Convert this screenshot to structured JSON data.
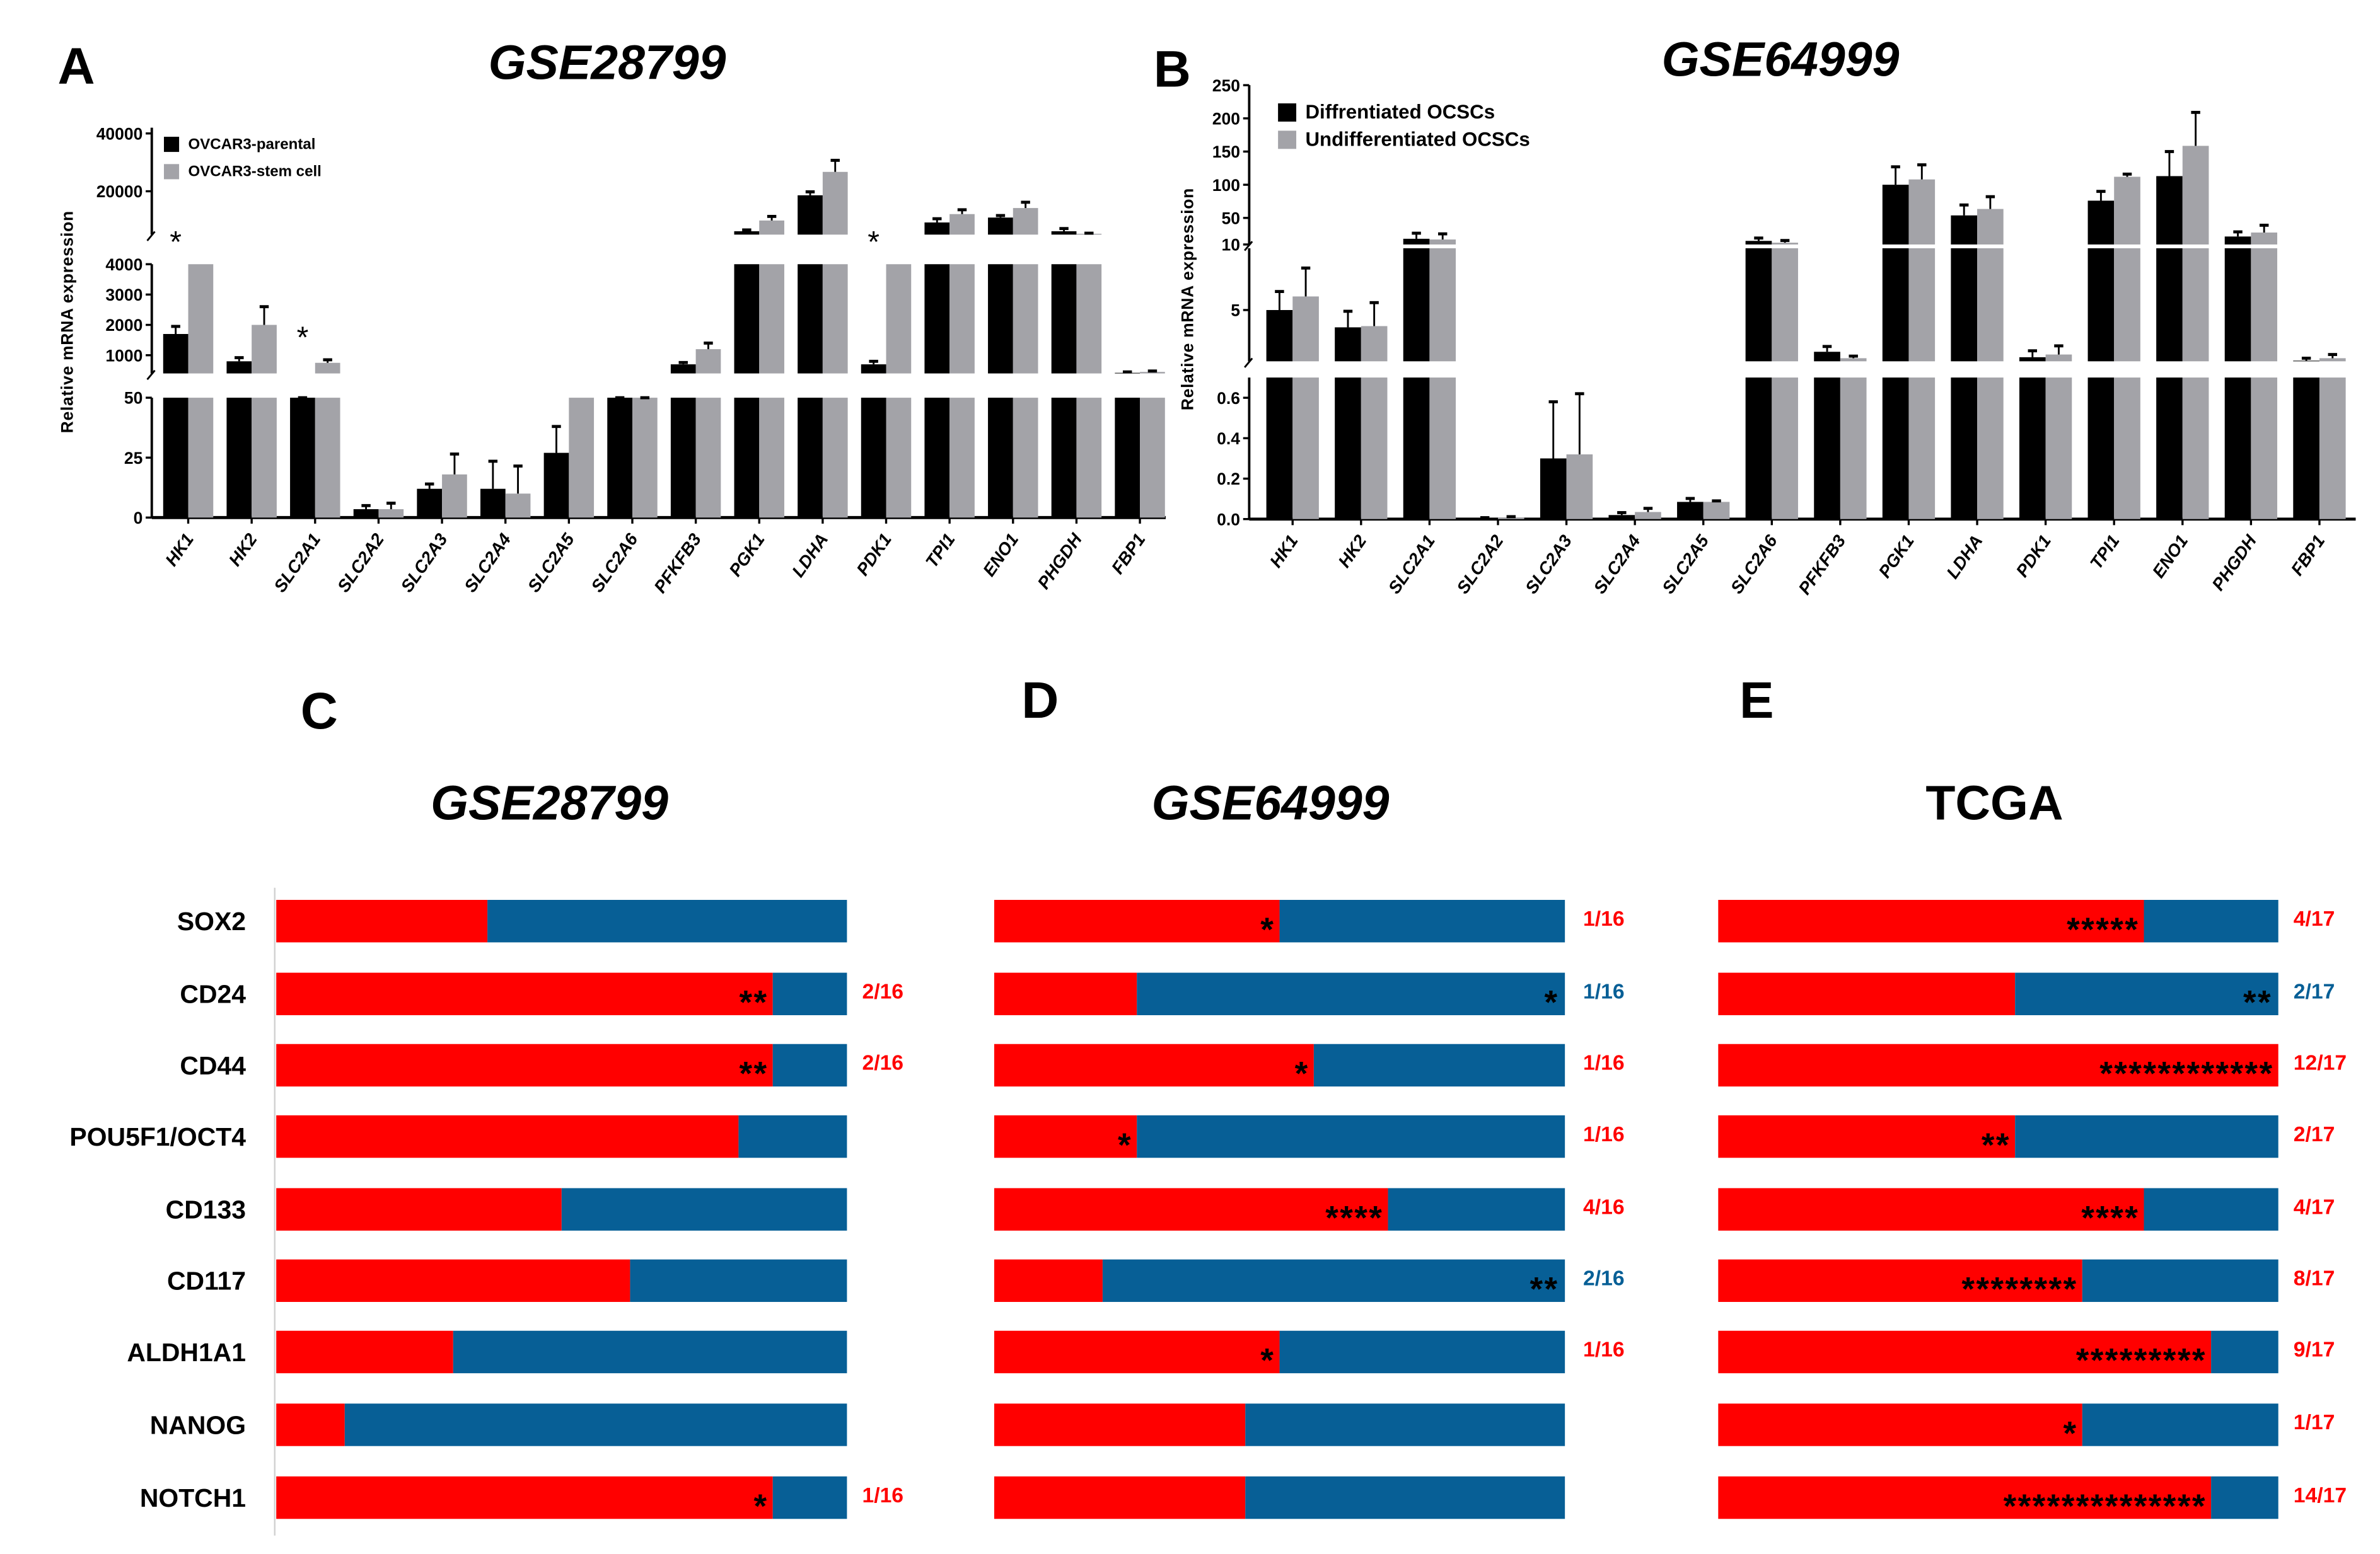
{
  "colors": {
    "parental": "#000000",
    "stem": "#A3A3A8",
    "red": "#FF0000",
    "blue": "#075F96",
    "axis": "#000000"
  },
  "panel_letters": {
    "A": "A",
    "B": "B",
    "C": "C",
    "D": "D",
    "E": "E"
  },
  "chart_data": [
    {
      "panel": "A",
      "type": "bar",
      "title": "GSE28799",
      "ylabel": "Relative mRNA expression",
      "xlabel": "",
      "y_segments": [
        [
          0,
          50
        ],
        [
          400,
          4000
        ],
        [
          5000,
          42000
        ]
      ],
      "yticks": [
        0,
        25,
        50,
        1000,
        2000,
        3000,
        4000,
        20000,
        40000
      ],
      "ytick_labels": [
        "0",
        "25",
        "50",
        "1000",
        "2000",
        "3000",
        "4000",
        "20000",
        "40000"
      ],
      "legend_position": "top-left",
      "categories": [
        "HK1",
        "HK2",
        "SLC2A1",
        "SLC2A2",
        "SLC2A3",
        "SLC2A4",
        "SLC2A5",
        "SLC2A6",
        "PFKFB3",
        "PGK1",
        "LDHA",
        "PDK1",
        "TPI1",
        "ENO1",
        "PHGDH",
        "FBP1"
      ],
      "series": [
        {
          "name": "OVCAR3-parental",
          "values": [
            1700,
            800,
            350,
            3.5,
            12,
            12,
            27,
            250,
            700,
            6160,
            18600,
            700,
            9200,
            10900,
            6160,
            420
          ],
          "errors": [
            250,
            120,
            50,
            1.5,
            2,
            11.5,
            11,
            100,
            60,
            460,
            1200,
            100,
            1300,
            700,
            940,
            30
          ]
        },
        {
          "name": "OVCAR3-stem cell",
          "values": [
            4000,
            2000,
            750,
            3.5,
            18,
            10,
            50,
            200,
            1200,
            9880,
            26700,
            4000,
            12100,
            14200,
            5300,
            450
          ],
          "errors": [
            0,
            600,
            100,
            2.5,
            8.5,
            11.5,
            0,
            80,
            200,
            1420,
            4000,
            0,
            1500,
            2000,
            200,
            30
          ]
        }
      ],
      "significance": [
        {
          "category": "HK1",
          "mark": "*"
        },
        {
          "category": "SLC2A1",
          "mark": "*"
        },
        {
          "category": "PDK1",
          "mark": "*"
        }
      ]
    },
    {
      "panel": "B",
      "type": "bar",
      "title": "GSE64999",
      "ylabel": "Relative mRNA expression",
      "xlabel": "",
      "y_segments": [
        [
          0,
          0.7
        ],
        [
          0.85,
          10
        ],
        [
          10,
          250
        ]
      ],
      "yticks": [
        0,
        0.2,
        0.4,
        0.6,
        5,
        10,
        50,
        100,
        150,
        200,
        250
      ],
      "ytick_labels": [
        "0.0",
        "0.2",
        "0.4",
        "0.6",
        "5",
        "10",
        "50",
        "100",
        "150",
        "200",
        "250"
      ],
      "legend_position": "top-left",
      "categories": [
        "HK1",
        "HK2",
        "SLC2A1",
        "SLC2A2",
        "SLC2A3",
        "SLC2A4",
        "SLC2A5",
        "SLC2A6",
        "PFKFB3",
        "PGK1",
        "LDHA",
        "PDK1",
        "TPI1",
        "ENO1",
        "PHGDH",
        "FBP1"
      ],
      "series": [
        {
          "name": "Diffrentiated OCSCs",
          "values": [
            5.0,
            3.6,
            18.6,
            0.005,
            0.3,
            0.02,
            0.085,
            15.4,
            1.62,
            100,
            53.8,
            1.18,
            76,
            113,
            22,
            0.9
          ],
          "errors": [
            1.5,
            1.3,
            8.4,
            0.002,
            0.28,
            0.012,
            0.017,
            4.3,
            0.43,
            27,
            15.7,
            0.52,
            14,
            37,
            7,
            0.2
          ]
        },
        {
          "name": "Undifferentiated OCSCs",
          "values": [
            6.1,
            3.7,
            17.5,
            0.008,
            0.32,
            0.035,
            0.085,
            12.7,
            1.1,
            108,
            63.5,
            1.4,
            112,
            158.6,
            28,
            1.1
          ],
          "errors": [
            2.3,
            1.9,
            8.5,
            0.004,
            0.3,
            0.018,
            0.005,
            3.3,
            0.17,
            22,
            18.5,
            0.7,
            4,
            50.4,
            11,
            0.3
          ]
        }
      ]
    },
    {
      "panel": "C",
      "type": "bar",
      "orientation": "horizontal-stacked",
      "title": "GSE28799",
      "categories": [
        "SOX2",
        "CD24",
        "CD44",
        "POU5F1/OCT4",
        "CD133",
        "CD117",
        "ALDH1A1",
        "NANOG",
        "NOTCH1"
      ],
      "red_fraction": [
        0.37,
        0.87,
        0.87,
        0.81,
        0.5,
        0.62,
        0.31,
        0.12,
        0.87
      ],
      "stars": [
        "",
        "**",
        "**",
        "",
        "",
        "",
        "",
        "",
        "*"
      ],
      "star_side": [
        "",
        "red",
        "red",
        "",
        "",
        "",
        "",
        "",
        "red"
      ],
      "labels": [
        "",
        "2/16",
        "2/16",
        "",
        "",
        "",
        "",
        "",
        "1/16"
      ],
      "label_colors": [
        "",
        "red",
        "red",
        "",
        "",
        "",
        "",
        "",
        "red"
      ]
    },
    {
      "panel": "D",
      "type": "bar",
      "orientation": "horizontal-stacked",
      "title": "GSE64999",
      "categories": [
        "SOX2",
        "CD24",
        "CD44",
        "POU5F1/OCT4",
        "CD133",
        "CD117",
        "ALDH1A1",
        "NANOG",
        "NOTCH1"
      ],
      "red_fraction": [
        0.5,
        0.25,
        0.56,
        0.25,
        0.69,
        0.19,
        0.5,
        0.44,
        0.44
      ],
      "stars": [
        "*",
        "*",
        "*",
        "*",
        "****",
        "**",
        "*",
        "",
        ""
      ],
      "star_side": [
        "red",
        "blue",
        "red",
        "red",
        "red",
        "blue",
        "red",
        "",
        ""
      ],
      "labels": [
        "1/16",
        "1/16",
        "1/16",
        "1/16",
        "4/16",
        "2/16",
        "1/16",
        "",
        ""
      ],
      "label_colors": [
        "red",
        "blue",
        "red",
        "red",
        "red",
        "blue",
        "red",
        "",
        ""
      ]
    },
    {
      "panel": "E",
      "type": "bar",
      "orientation": "horizontal-stacked",
      "title": "TCGA",
      "categories": [
        "SOX2",
        "CD24",
        "CD44",
        "POU5F1/OCT4",
        "CD133",
        "CD117",
        "ALDH1A1",
        "NANOG",
        "NOTCH1"
      ],
      "red_fraction": [
        0.76,
        0.53,
        1.0,
        0.53,
        0.76,
        0.65,
        0.88,
        0.65,
        0.88
      ],
      "stars": [
        "*****",
        "**",
        "************",
        "**",
        "****",
        "********",
        "*********",
        "*",
        "**************"
      ],
      "star_side": [
        "red",
        "blue",
        "red",
        "red",
        "red",
        "red",
        "red",
        "red",
        "red"
      ],
      "labels": [
        "4/17",
        "2/17",
        "12/17",
        "2/17",
        "4/17",
        "8/17",
        "9/17",
        "1/17",
        "14/17"
      ],
      "label_colors": [
        "red",
        "blue",
        "red",
        "red",
        "red",
        "red",
        "red",
        "red",
        "red"
      ]
    }
  ]
}
